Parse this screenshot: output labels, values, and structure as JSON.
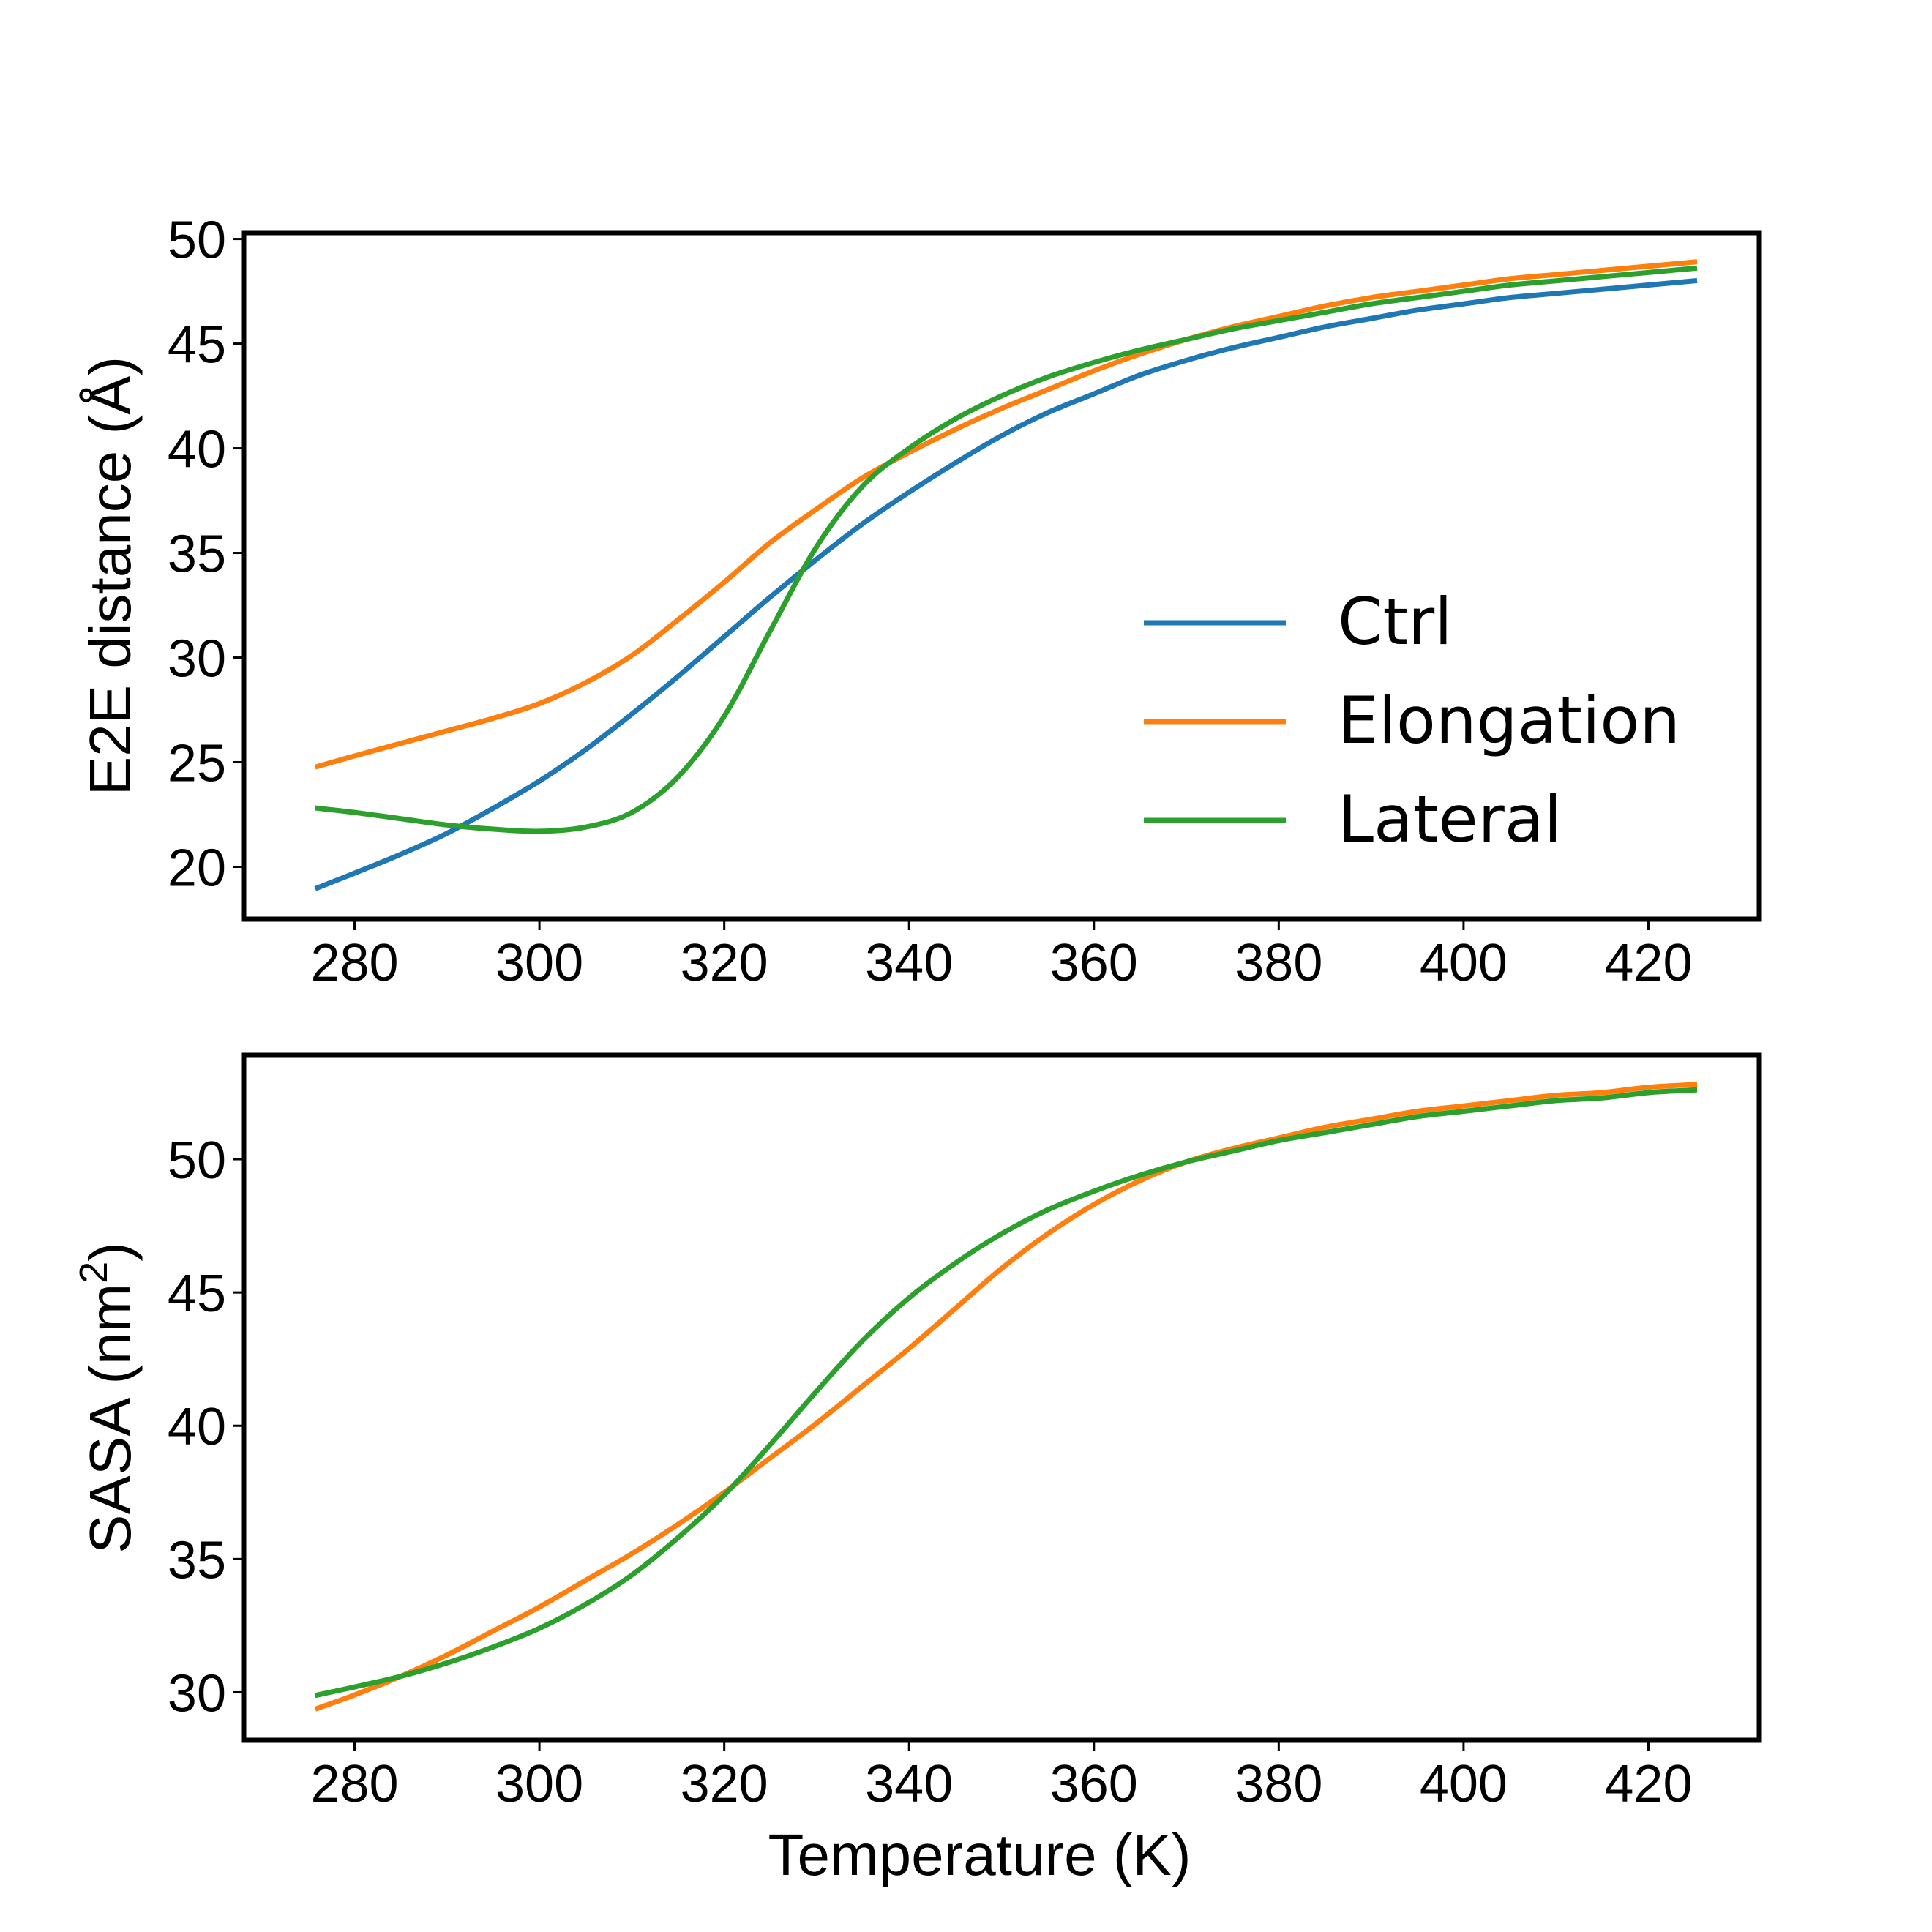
{
  "chart_data": [
    {
      "type": "line",
      "title": "",
      "xlabel": "",
      "ylabel": "E2E distance (Å)",
      "xlim": [
        268,
        432
      ],
      "ylim": [
        17.5,
        50.3
      ],
      "xticks": [
        280,
        300,
        320,
        340,
        360,
        380,
        400,
        420
      ],
      "yticks": [
        20,
        25,
        30,
        35,
        40,
        45,
        50
      ],
      "grid": false,
      "legend": {
        "position": "lower-right",
        "entries": [
          "Ctrl",
          "Elongation",
          "Lateral"
        ]
      },
      "series": [
        {
          "name": "Ctrl",
          "color": "#1f77b4",
          "x": [
            276,
            280,
            285,
            290,
            295,
            300,
            305,
            310,
            315,
            320,
            325,
            330,
            335,
            340,
            345,
            350,
            355,
            360,
            365,
            370,
            375,
            380,
            385,
            390,
            395,
            400,
            405,
            410,
            415,
            420,
            425
          ],
          "y": [
            19.0,
            19.7,
            20.6,
            21.6,
            22.8,
            24.1,
            25.6,
            27.3,
            29.1,
            31.0,
            32.9,
            34.7,
            36.4,
            37.9,
            39.3,
            40.6,
            41.7,
            42.6,
            43.5,
            44.2,
            44.8,
            45.3,
            45.8,
            46.2,
            46.6,
            46.9,
            47.2,
            47.4,
            47.6,
            47.8,
            48.0
          ]
        },
        {
          "name": "Elongation",
          "color": "#ff7f0e",
          "x": [
            276,
            280,
            285,
            290,
            295,
            300,
            305,
            310,
            315,
            320,
            325,
            330,
            335,
            340,
            345,
            350,
            355,
            360,
            365,
            370,
            375,
            380,
            385,
            390,
            395,
            400,
            405,
            410,
            415,
            420,
            425
          ],
          "y": [
            24.8,
            25.3,
            25.9,
            26.5,
            27.1,
            27.8,
            28.8,
            30.1,
            31.8,
            33.6,
            35.5,
            37.1,
            38.6,
            39.8,
            40.9,
            41.9,
            42.8,
            43.7,
            44.5,
            45.2,
            45.8,
            46.3,
            46.8,
            47.2,
            47.5,
            47.8,
            48.1,
            48.3,
            48.5,
            48.7,
            48.9
          ]
        },
        {
          "name": "Lateral",
          "color": "#2ca02c",
          "x": [
            276,
            280,
            285,
            290,
            295,
            300,
            305,
            310,
            315,
            320,
            325,
            330,
            335,
            340,
            345,
            350,
            355,
            360,
            365,
            370,
            375,
            380,
            385,
            390,
            395,
            400,
            405,
            410,
            415,
            420,
            425
          ],
          "y": [
            22.8,
            22.6,
            22.3,
            22.0,
            21.8,
            21.7,
            21.9,
            22.6,
            24.3,
            27.2,
            31.3,
            35.3,
            38.2,
            40.0,
            41.4,
            42.5,
            43.4,
            44.1,
            44.7,
            45.2,
            45.7,
            46.1,
            46.5,
            46.9,
            47.2,
            47.5,
            47.8,
            48.0,
            48.2,
            48.4,
            48.6
          ]
        }
      ]
    },
    {
      "type": "line",
      "title": "",
      "xlabel": "Temperature (K)",
      "ylabel": "SASA (nm²)",
      "xlim": [
        268,
        432
      ],
      "ylim": [
        28.2,
        53.9
      ],
      "xticks": [
        280,
        300,
        320,
        340,
        360,
        380,
        400,
        420
      ],
      "yticks": [
        30,
        35,
        40,
        45,
        50
      ],
      "grid": false,
      "series": [
        {
          "name": "Elongation",
          "color": "#ff7f0e",
          "x": [
            276,
            280,
            285,
            290,
            295,
            300,
            305,
            310,
            315,
            320,
            325,
            330,
            335,
            340,
            345,
            350,
            355,
            360,
            365,
            370,
            375,
            380,
            385,
            390,
            395,
            400,
            405,
            410,
            415,
            420,
            425
          ],
          "y": [
            29.4,
            29.9,
            30.6,
            31.4,
            32.3,
            33.2,
            34.2,
            35.2,
            36.3,
            37.5,
            38.8,
            40.1,
            41.5,
            42.9,
            44.4,
            45.9,
            47.2,
            48.3,
            49.2,
            49.9,
            50.4,
            50.8,
            51.2,
            51.5,
            51.8,
            52.0,
            52.2,
            52.4,
            52.5,
            52.7,
            52.8
          ]
        },
        {
          "name": "Lateral",
          "color": "#2ca02c",
          "x": [
            276,
            280,
            285,
            290,
            295,
            300,
            305,
            310,
            315,
            320,
            325,
            330,
            335,
            340,
            345,
            350,
            355,
            360,
            365,
            370,
            375,
            380,
            385,
            390,
            395,
            400,
            405,
            410,
            415,
            420,
            425
          ],
          "y": [
            29.9,
            30.2,
            30.6,
            31.1,
            31.7,
            32.4,
            33.3,
            34.4,
            35.8,
            37.4,
            39.3,
            41.3,
            43.2,
            44.8,
            46.1,
            47.2,
            48.1,
            48.8,
            49.4,
            49.9,
            50.3,
            50.7,
            51.0,
            51.3,
            51.6,
            51.8,
            52.0,
            52.2,
            52.3,
            52.5,
            52.6
          ]
        }
      ]
    }
  ]
}
